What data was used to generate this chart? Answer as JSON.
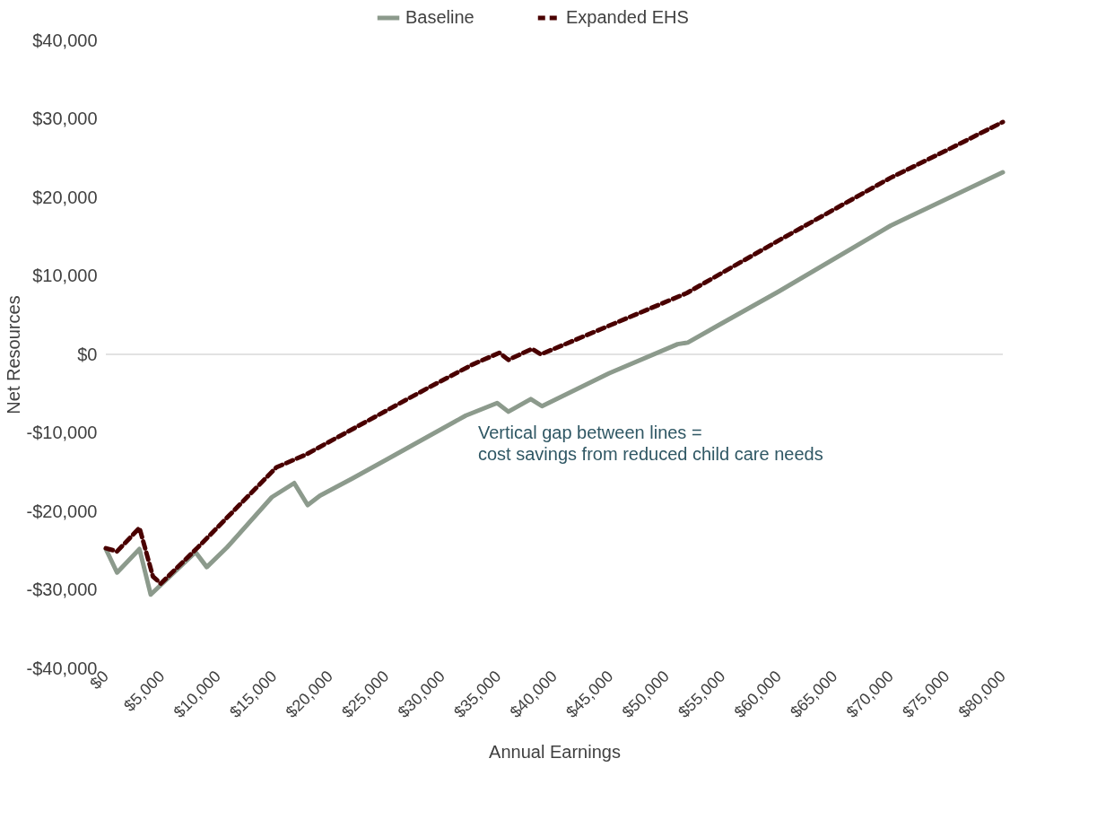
{
  "chart_data": {
    "type": "line",
    "xlabel": "Annual Earnings",
    "ylabel": "Net Resources",
    "series": [
      {
        "name": "Baseline",
        "color": "#8c9a8c",
        "line_style": "solid",
        "x": [
          0,
          1000,
          3000,
          4000,
          8000,
          9000,
          10800,
          14800,
          16800,
          18000,
          19100,
          22000,
          25800,
          32100,
          34900,
          35900,
          37900,
          38900,
          44900,
          51000,
          51900,
          54500,
          60000,
          70000,
          80000
        ],
        "values": [
          -24800,
          -27800,
          -24800,
          -30600,
          -25200,
          -27100,
          -24600,
          -18200,
          -16400,
          -19200,
          -18000,
          -15800,
          -12800,
          -7800,
          -6200,
          -7300,
          -5700,
          -6600,
          -2400,
          1300,
          1500,
          3600,
          8000,
          16400,
          23200
        ]
      },
      {
        "name": "Expanded EHS",
        "color": "#4a0000",
        "line_style": "dashed",
        "x": [
          0,
          1000,
          3000,
          4200,
          4900,
          8200,
          15200,
          17800,
          28700,
          32700,
          35100,
          35900,
          38000,
          38800,
          51800,
          60000,
          70000,
          75000,
          80000
        ],
        "values": [
          -24700,
          -25100,
          -22100,
          -28300,
          -29200,
          -24600,
          -14400,
          -12800,
          -4300,
          -1300,
          200,
          -700,
          700,
          0,
          7800,
          14500,
          22500,
          26000,
          29600
        ]
      }
    ],
    "xlim": [
      0,
      80000
    ],
    "xticks": [
      {
        "value": 0,
        "label": "$0"
      },
      {
        "value": 5000,
        "label": "$5,000"
      },
      {
        "value": 10000,
        "label": "$10,000"
      },
      {
        "value": 15000,
        "label": "$15,000"
      },
      {
        "value": 20000,
        "label": "$20,000"
      },
      {
        "value": 25000,
        "label": "$25,000"
      },
      {
        "value": 30000,
        "label": "$30,000"
      },
      {
        "value": 35000,
        "label": "$35,000"
      },
      {
        "value": 40000,
        "label": "$40,000"
      },
      {
        "value": 45000,
        "label": "$45,000"
      },
      {
        "value": 50000,
        "label": "$50,000"
      },
      {
        "value": 55000,
        "label": "$55,000"
      },
      {
        "value": 60000,
        "label": "$60,000"
      },
      {
        "value": 65000,
        "label": "$65,000"
      },
      {
        "value": 70000,
        "label": "$70,000"
      },
      {
        "value": 75000,
        "label": "$75,000"
      },
      {
        "value": 80000,
        "label": "$80,000"
      }
    ],
    "ylim": [
      -40000,
      40000
    ],
    "yticks": [
      {
        "value": -40000,
        "label": "-$40,000"
      },
      {
        "value": -30000,
        "label": "-$30,000"
      },
      {
        "value": -20000,
        "label": "-$20,000"
      },
      {
        "value": -10000,
        "label": "-$10,000"
      },
      {
        "value": 0,
        "label": "$0"
      },
      {
        "value": 10000,
        "label": "$10,000"
      },
      {
        "value": 20000,
        "label": "$20,000"
      },
      {
        "value": 30000,
        "label": "$30,000"
      },
      {
        "value": 40000,
        "label": "$40,000"
      }
    ],
    "ref_lines": [
      {
        "axis": "y",
        "value": 0,
        "color": "#d9d9d9"
      }
    ],
    "annotations": [
      "Vertical gap between lines =\ncost savings from reduced child care needs"
    ],
    "grid": false,
    "legend": "top",
    "marker": "none"
  }
}
